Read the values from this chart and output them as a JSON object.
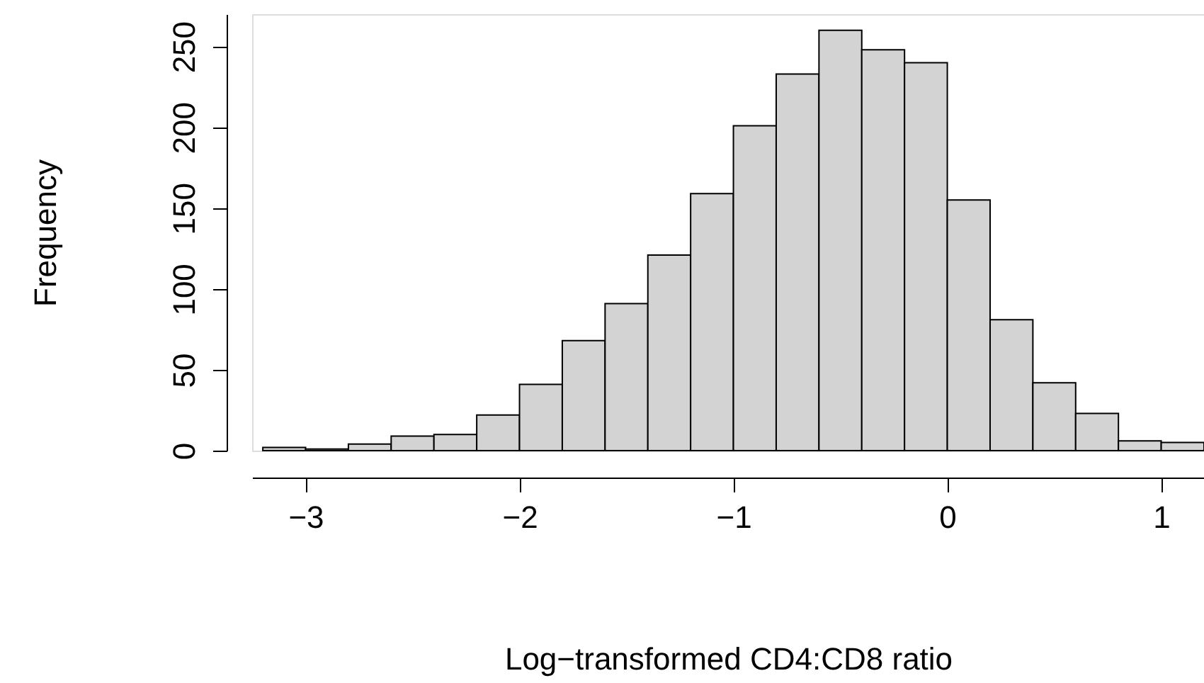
{
  "chart_data": {
    "type": "histogram",
    "xlabel": "Log−transformed CD4:CD8 ratio",
    "ylabel": "Frequency",
    "bins": [
      -3.2,
      -3.0,
      -2.8,
      -2.6,
      -2.4,
      -2.2,
      -2.0,
      -1.8,
      -1.6,
      -1.4,
      -1.2,
      -1.0,
      -0.8,
      -0.6,
      -0.4,
      -0.2,
      0.0,
      0.2,
      0.4,
      0.6,
      0.8,
      1.0,
      1.2
    ],
    "values": [
      2,
      1,
      4,
      9,
      10,
      22,
      41,
      68,
      91,
      121,
      159,
      201,
      233,
      260,
      248,
      240,
      155,
      81,
      42,
      23,
      6,
      5
    ],
    "color": "#d3d3d3",
    "xlim": [
      -3.25,
      1.2
    ],
    "xticks": [
      -3,
      -2,
      -1,
      0,
      1
    ],
    "ylim": [
      0,
      270
    ],
    "yticks": [
      0,
      50,
      100,
      150,
      200,
      250
    ],
    "grid": false
  }
}
